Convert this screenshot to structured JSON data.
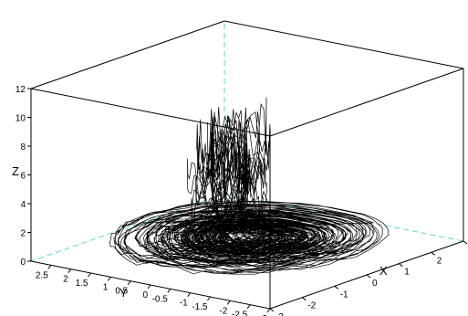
{
  "chart_data": {
    "type": "line",
    "projection": "3d-perspective",
    "xlabel": "X",
    "ylabel": "Y",
    "zlabel": "Z",
    "xlim": [
      -3,
      3
    ],
    "ylim": [
      -3,
      3
    ],
    "zlim": [
      0,
      12
    ],
    "x_ticks": [
      "-3",
      "-2",
      "-1",
      "0",
      "1",
      "2",
      "3"
    ],
    "y_ticks": [
      "-3",
      "-2.5",
      "-2",
      "-1.5",
      "-1",
      "-0.5",
      "0",
      "0.5",
      "1",
      "1.5",
      "2",
      "2.5"
    ],
    "z_ticks": [
      "0",
      "2",
      "4",
      "6",
      "8",
      "10",
      "12"
    ],
    "grid": false,
    "box": true,
    "line_color": "#000000",
    "box_color": "#000000",
    "hidden_edge_color": "#5bd3d8",
    "series": [
      {
        "description_of_shape": "chaotic 3D trajectory: dense spiraling loops in the X-Y plane near Z=0 with sporadic spikes up to Z about 11.5",
        "spike_peaks_z": [
          11.5,
          10.5,
          9.8,
          9.6,
          9.3,
          8.2,
          7.8,
          7.2,
          6.3,
          5.8
        ]
      }
    ]
  }
}
